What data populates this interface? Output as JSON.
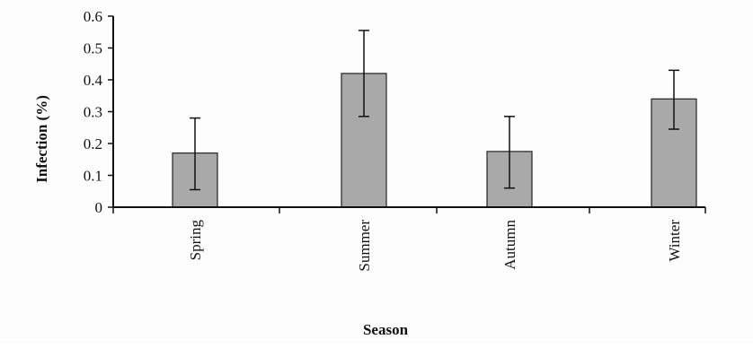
{
  "chart_data": {
    "type": "bar",
    "categories": [
      "Spring",
      "Summer",
      "Autumn",
      "Winter"
    ],
    "values": [
      0.17,
      0.42,
      0.175,
      0.34
    ],
    "error_bars": [
      {
        "low": 0.055,
        "high": 0.28
      },
      {
        "low": 0.285,
        "high": 0.555
      },
      {
        "low": 0.06,
        "high": 0.285
      },
      {
        "low": 0.245,
        "high": 0.43
      }
    ],
    "title": "",
    "xlabel": "Season",
    "ylabel": "Infection (%)",
    "ylim": [
      0,
      0.6
    ],
    "yticks": [
      "0",
      "0.1",
      "0.2",
      "0.3",
      "0.4",
      "0.5",
      "0.6"
    ],
    "grid": false,
    "bar_color": "#a9a9a9",
    "bar_edge_color": "#222222",
    "axis_color": "#111111"
  }
}
